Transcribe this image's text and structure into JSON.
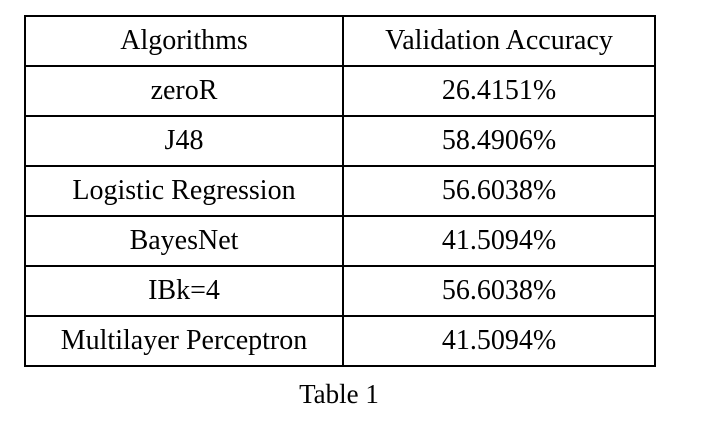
{
  "table": {
    "headers": [
      "Algorithms",
      "Validation Accuracy"
    ],
    "rows": [
      [
        "zeroR",
        "26.4151%"
      ],
      [
        "J48",
        "58.4906%"
      ],
      [
        "Logistic Regression",
        "56.6038%"
      ],
      [
        "BayesNet",
        "41.5094%"
      ],
      [
        "IBk=4",
        "56.6038%"
      ],
      [
        "Multilayer Perceptron",
        "41.5094%"
      ]
    ]
  },
  "caption": "Table 1"
}
